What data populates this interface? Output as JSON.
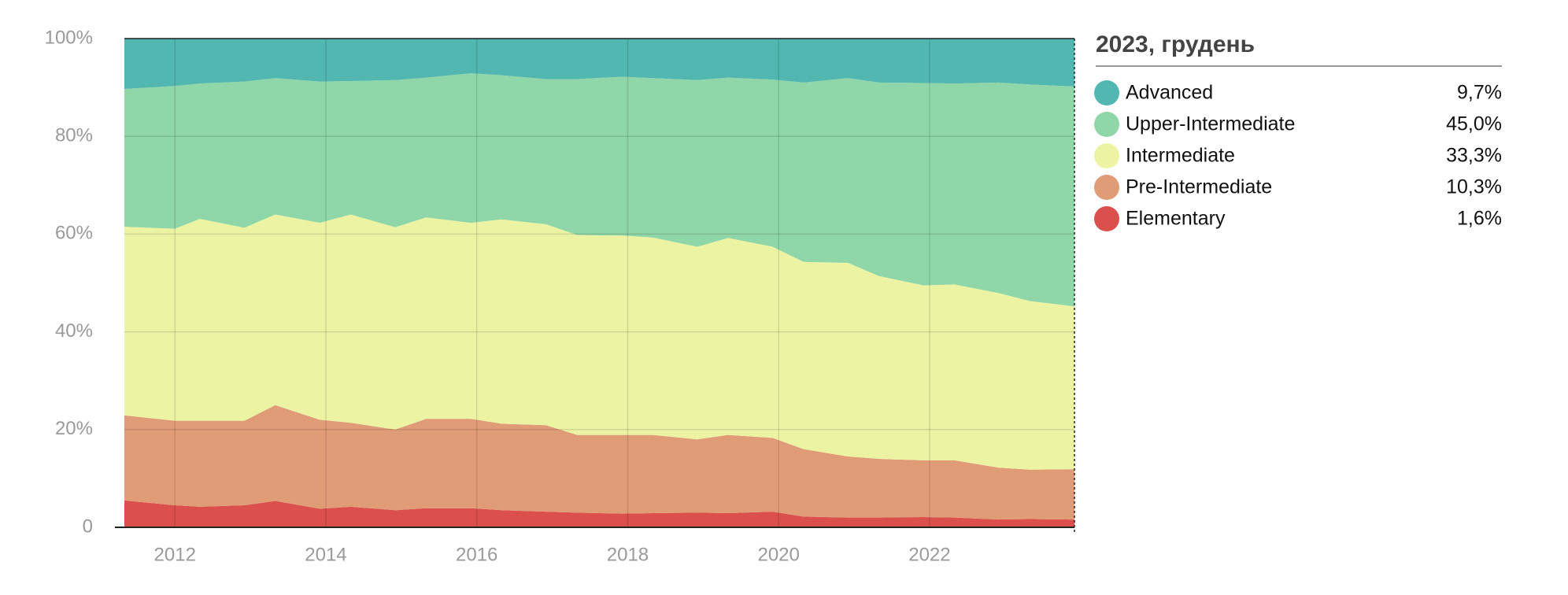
{
  "chart_data": {
    "type": "area",
    "stacked": true,
    "x": [
      2011.33,
      2012.0,
      2012.33,
      2012.92,
      2013.33,
      2013.92,
      2014.33,
      2014.92,
      2015.33,
      2015.92,
      2016.33,
      2016.92,
      2017.33,
      2017.92,
      2018.33,
      2018.92,
      2019.33,
      2019.92,
      2020.33,
      2020.92,
      2021.33,
      2021.92,
      2022.33,
      2022.92,
      2023.33,
      2023.92
    ],
    "xlim": [
      2011.33,
      2023.92
    ],
    "xticks": [
      2012,
      2014,
      2016,
      2018,
      2020,
      2022
    ],
    "ylim": [
      0,
      100
    ],
    "yticks": [
      0,
      {
        "value": 20,
        "label": "20%"
      },
      {
        "value": 40,
        "label": "40%"
      },
      {
        "value": 60,
        "label": "60%"
      },
      {
        "value": 80,
        "label": "80%"
      },
      {
        "value": 100,
        "label": "100%"
      }
    ],
    "grid": true,
    "legend_title": "2023, грудень",
    "legend_value_labels": [
      "9,7%",
      "45,0%",
      "33,3%",
      "10,3%",
      "1,6%"
    ],
    "series": [
      {
        "name": "Advanced",
        "color": "#52b7b1",
        "values": [
          10.3,
          9.7,
          9.2,
          8.8,
          8.1,
          8.8,
          8.7,
          8.5,
          8.0,
          7.1,
          7.5,
          8.3,
          8.3,
          7.8,
          8.1,
          8.5,
          8.0,
          8.4,
          9.0,
          8.1,
          9.0,
          9.1,
          9.2,
          9.0,
          9.4,
          9.7
        ]
      },
      {
        "name": "Upper-Intermediate",
        "color": "#8fd6a8",
        "values": [
          28.2,
          29.2,
          27.7,
          29.9,
          27.9,
          28.9,
          27.3,
          30.1,
          28.6,
          30.6,
          29.5,
          29.7,
          31.9,
          32.5,
          32.6,
          34.1,
          32.8,
          34.2,
          36.7,
          37.8,
          39.6,
          41.4,
          41.1,
          43.1,
          44.3,
          45.0
        ]
      },
      {
        "name": "Intermediate",
        "color": "#ecf4a4",
        "values": [
          38.6,
          39.3,
          41.3,
          39.5,
          39.0,
          40.3,
          42.6,
          41.4,
          41.2,
          40.1,
          41.8,
          41.1,
          40.9,
          40.8,
          40.4,
          39.4,
          40.3,
          39.1,
          38.3,
          39.6,
          37.4,
          35.8,
          36.0,
          35.7,
          34.5,
          33.3
        ]
      },
      {
        "name": "Pre-Intermediate",
        "color": "#e09c77",
        "values": [
          17.4,
          17.3,
          17.6,
          17.3,
          19.6,
          18.2,
          17.2,
          16.5,
          18.3,
          18.3,
          17.7,
          17.7,
          15.9,
          16.1,
          16.0,
          15.0,
          16.0,
          15.1,
          13.8,
          12.5,
          12.0,
          11.6,
          11.7,
          10.6,
          10.1,
          10.3
        ]
      },
      {
        "name": "Elementary",
        "color": "#db4f4c",
        "values": [
          5.5,
          4.5,
          4.2,
          4.5,
          5.4,
          3.8,
          4.2,
          3.5,
          3.9,
          3.9,
          3.5,
          3.2,
          3.0,
          2.8,
          2.9,
          3.0,
          2.9,
          3.2,
          2.2,
          2.0,
          2.0,
          2.1,
          2.0,
          1.6,
          1.7,
          1.6
        ]
      }
    ]
  }
}
